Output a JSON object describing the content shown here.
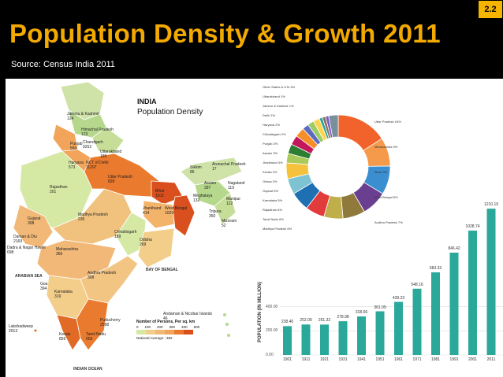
{
  "slide": {
    "number": "2.2",
    "title": "Population Density & Growth 2011",
    "source": "Source: Census India 2011"
  },
  "colors": {
    "background": "#000000",
    "title": "#f2a900",
    "badge": "#f4b400",
    "bar": "#2aa99a"
  },
  "map": {
    "heading": "INDIA",
    "subheading": "Population Density",
    "states": [
      {
        "name": "Jammu & Kashmir",
        "value": "124"
      },
      {
        "name": "Himachal Pradesh",
        "value": "123"
      },
      {
        "name": "Punjab",
        "value": "550"
      },
      {
        "name": "Chandigarh",
        "value": "9252"
      },
      {
        "name": "Uttarakhand",
        "value": "189"
      },
      {
        "name": "Haryana",
        "value": "573"
      },
      {
        "name": "NCT of Delhi",
        "value": "11297"
      },
      {
        "name": "Rajasthan",
        "value": "201"
      },
      {
        "name": "Uttar Pradesh",
        "value": "828"
      },
      {
        "name": "Bihar",
        "value": "1102"
      },
      {
        "name": "Sikkim",
        "value": "86"
      },
      {
        "name": "Arunachal Pradesh",
        "value": "17"
      },
      {
        "name": "Assam",
        "value": "397"
      },
      {
        "name": "Nagaland",
        "value": "119"
      },
      {
        "name": "Meghalaya",
        "value": "132"
      },
      {
        "name": "Manipur",
        "value": "122"
      },
      {
        "name": "Tripura",
        "value": "350"
      },
      {
        "name": "Mizoram",
        "value": "52"
      },
      {
        "name": "West Bengal",
        "value": "1029"
      },
      {
        "name": "Jharkhand",
        "value": "414"
      },
      {
        "name": "Gujarat",
        "value": "308"
      },
      {
        "name": "Madhya Pradesh",
        "value": "236"
      },
      {
        "name": "Chhattisgarh",
        "value": "189"
      },
      {
        "name": "Odisha",
        "value": "269"
      },
      {
        "name": "Daman & Diu",
        "value": "2169"
      },
      {
        "name": "Dadra & Nagar Haveli",
        "value": "698"
      },
      {
        "name": "Maharashtra",
        "value": "365"
      },
      {
        "name": "Andhra Pradesh",
        "value": "308"
      },
      {
        "name": "Goa",
        "value": "394"
      },
      {
        "name": "Karnataka",
        "value": "319"
      },
      {
        "name": "Lakshadweep",
        "value": "2013"
      },
      {
        "name": "Kerala",
        "value": "859"
      },
      {
        "name": "Tamil Nadu",
        "value": "555"
      },
      {
        "name": "Puducherry",
        "value": "2598"
      },
      {
        "name": "Andaman & Nicobar Islands",
        "value": "46"
      }
    ],
    "seas": [
      "ARABIAN SEA",
      "BAY OF BENGAL",
      "INDIAN OCEAN"
    ],
    "legend": {
      "title": "Number of Persons, Per sq. km",
      "ticks": [
        "0",
        "100",
        "200",
        "300",
        "400",
        "500"
      ],
      "note": "National Average : 382"
    }
  },
  "donut": {
    "labels_left": [
      "Other States & UTs 3%",
      "Uttarakhand 1%",
      "Jammu & Kashmir 1%",
      "Delhi 1%",
      "Haryana 2%",
      "Chhattisgarh 2%",
      "Punjab 2%",
      "Assam 3%",
      "Jharkhand 3%",
      "Kerala 3%",
      "Orissa 3%",
      "Gujarat 5%",
      "Karnataka 5%",
      "Rajasthan 6%",
      "Tamil Nadu 6%",
      "Madhya Pradesh 6%"
    ],
    "labels_right": [
      "Uttar Pradesh 16%",
      "Maharashtra 9%",
      "Bihar 9%",
      "West Bengal 8%",
      "Andhra Pradesh 7%"
    ]
  },
  "chart_data": {
    "type": "bar",
    "categories": [
      "1901",
      "1911",
      "1921",
      "1931",
      "1941",
      "1951",
      "1961",
      "1971",
      "1981",
      "1991",
      "2001",
      "2011"
    ],
    "values": [
      238.4,
      252.09,
      251.32,
      278.98,
      318.66,
      361.09,
      439.23,
      548.16,
      683.33,
      846.42,
      1028.74,
      1210.19
    ],
    "value_labels": [
      "238.40",
      "252.09",
      "251.32",
      "278.98",
      "318.66",
      "361.09",
      "439.23",
      "548.16",
      "683.33",
      "846.42",
      "1028.74",
      "1210.19"
    ],
    "ylabel": "POPULATION (IN MILLION)",
    "yticks": [
      "0.00",
      "200.00",
      "400.00"
    ],
    "ylim": [
      0,
      1250
    ],
    "grid": true,
    "color": "#2aa99a"
  }
}
